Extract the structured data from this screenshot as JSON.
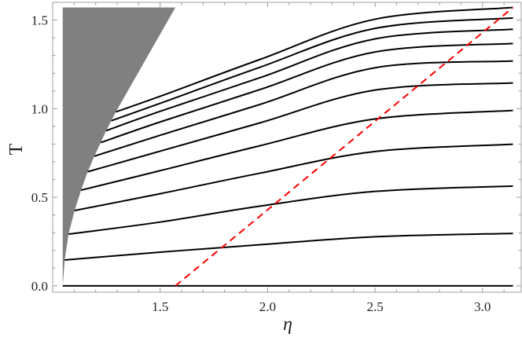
{
  "chart_data": {
    "type": "line",
    "title": "",
    "xlabel": "η",
    "ylabel": "T",
    "xlim": [
      1.0,
      3.18
    ],
    "ylim": [
      -0.036,
      1.6
    ],
    "x_ticks": [
      1.5,
      2.0,
      2.5,
      3.0
    ],
    "x_tick_labels": [
      "1.5",
      "2.0",
      "2.5",
      "3.0"
    ],
    "y_ticks": [
      0.0,
      0.5,
      1.0,
      1.5
    ],
    "y_tick_labels": [
      "0.0",
      "0.5",
      "1.0",
      "1.5"
    ],
    "minor_tick_step": 0.1,
    "grid": false,
    "colors": {
      "curves": "#000000",
      "region": "#808080",
      "dashed": "#ff0000"
    },
    "shaded_region": {
      "description_points": [
        [
          1.047,
          0
        ],
        [
          1.047,
          1.571
        ],
        [
          1.571,
          1.571
        ],
        [
          1.294,
          0.982
        ],
        [
          1.273,
          0.932
        ],
        [
          1.249,
          0.876
        ],
        [
          1.224,
          0.809
        ],
        [
          1.194,
          0.732
        ],
        [
          1.163,
          0.644
        ],
        [
          1.132,
          0.54
        ],
        [
          1.102,
          0.425
        ],
        [
          1.074,
          0.292
        ],
        [
          1.056,
          0.146
        ],
        [
          1.05,
          0.05
        ]
      ]
    },
    "dashed_line": {
      "points": [
        [
          1.571,
          0
        ],
        [
          3.1416,
          1.571
        ]
      ]
    },
    "series": [
      {
        "points": [
          [
            1.047,
            0
          ],
          [
            3.1416,
            0
          ]
        ]
      },
      {
        "points": [
          [
            1.056,
            0.146
          ],
          [
            1.5,
            0.19
          ],
          [
            1.965,
            0.232
          ],
          [
            2.5,
            0.277
          ],
          [
            3.1416,
            0.296
          ]
        ]
      },
      {
        "points": [
          [
            1.074,
            0.292
          ],
          [
            1.5,
            0.36
          ],
          [
            1.965,
            0.45
          ],
          [
            2.5,
            0.533
          ],
          [
            3.1416,
            0.563
          ]
        ]
      },
      {
        "points": [
          [
            1.102,
            0.425
          ],
          [
            1.5,
            0.52
          ],
          [
            1.965,
            0.636
          ],
          [
            2.5,
            0.758
          ],
          [
            3.1416,
            0.799
          ]
        ]
      },
      {
        "points": [
          [
            1.132,
            0.54
          ],
          [
            1.5,
            0.65
          ],
          [
            1.965,
            0.791
          ],
          [
            2.5,
            0.942
          ],
          [
            3.1416,
            0.99
          ]
        ]
      },
      {
        "points": [
          [
            1.163,
            0.644
          ],
          [
            1.5,
            0.76
          ],
          [
            1.965,
            0.92
          ],
          [
            2.5,
            1.105
          ],
          [
            3.1416,
            1.145
          ]
        ]
      },
      {
        "points": [
          [
            1.194,
            0.732
          ],
          [
            1.5,
            0.85
          ],
          [
            1.965,
            1.024
          ],
          [
            2.5,
            1.231
          ],
          [
            3.1416,
            1.269
          ]
        ]
      },
      {
        "points": [
          [
            1.224,
            0.809
          ],
          [
            1.5,
            0.925
          ],
          [
            1.965,
            1.108
          ],
          [
            2.5,
            1.32
          ],
          [
            3.1416,
            1.368
          ]
        ]
      },
      {
        "points": [
          [
            1.249,
            0.876
          ],
          [
            1.5,
            0.985
          ],
          [
            1.965,
            1.175
          ],
          [
            2.5,
            1.394
          ],
          [
            3.1416,
            1.448
          ]
        ]
      },
      {
        "points": [
          [
            1.273,
            0.932
          ],
          [
            1.5,
            1.03
          ],
          [
            1.965,
            1.234
          ],
          [
            2.5,
            1.453
          ],
          [
            3.1416,
            1.512
          ]
        ]
      },
      {
        "points": [
          [
            1.294,
            0.982
          ],
          [
            1.5,
            1.07
          ],
          [
            1.965,
            1.278
          ],
          [
            2.5,
            1.505
          ],
          [
            3.1416,
            1.571
          ]
        ]
      }
    ]
  }
}
